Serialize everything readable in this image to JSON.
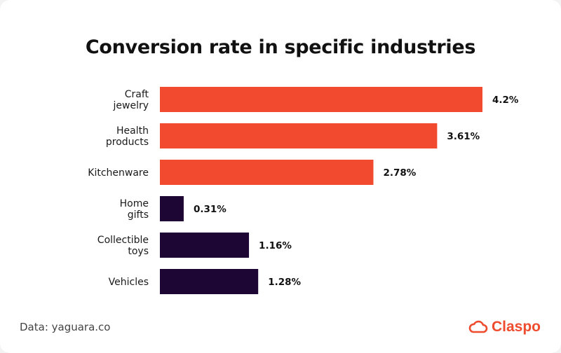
{
  "chart_data": {
    "type": "bar",
    "orientation": "horizontal",
    "title": "Conversion rate in specific industries",
    "categories": [
      [
        "Craft",
        "jewelry"
      ],
      [
        "Health",
        "products"
      ],
      [
        "Kitchenware"
      ],
      [
        "Home",
        "gifts"
      ],
      [
        "Collectible",
        "toys"
      ],
      [
        "Vehicles"
      ]
    ],
    "values": [
      4.2,
      3.61,
      2.78,
      0.31,
      1.16,
      1.28
    ],
    "value_labels": [
      "4.2%",
      "3.61%",
      "2.78%",
      "0.31%",
      "1.16%",
      "1.28%"
    ],
    "bar_colors": [
      "#F24A2F",
      "#F24A2F",
      "#F24A2F",
      "#1E0634",
      "#1E0634",
      "#1E0634"
    ],
    "xlabel": "",
    "ylabel": "",
    "xlim": [
      0,
      4.2
    ],
    "grid": false
  },
  "footer": {
    "source": "Data: yaguara.co",
    "brand": "Claspo",
    "brand_color": "#EF4B2F",
    "logo_icon": "cloud-icon"
  }
}
